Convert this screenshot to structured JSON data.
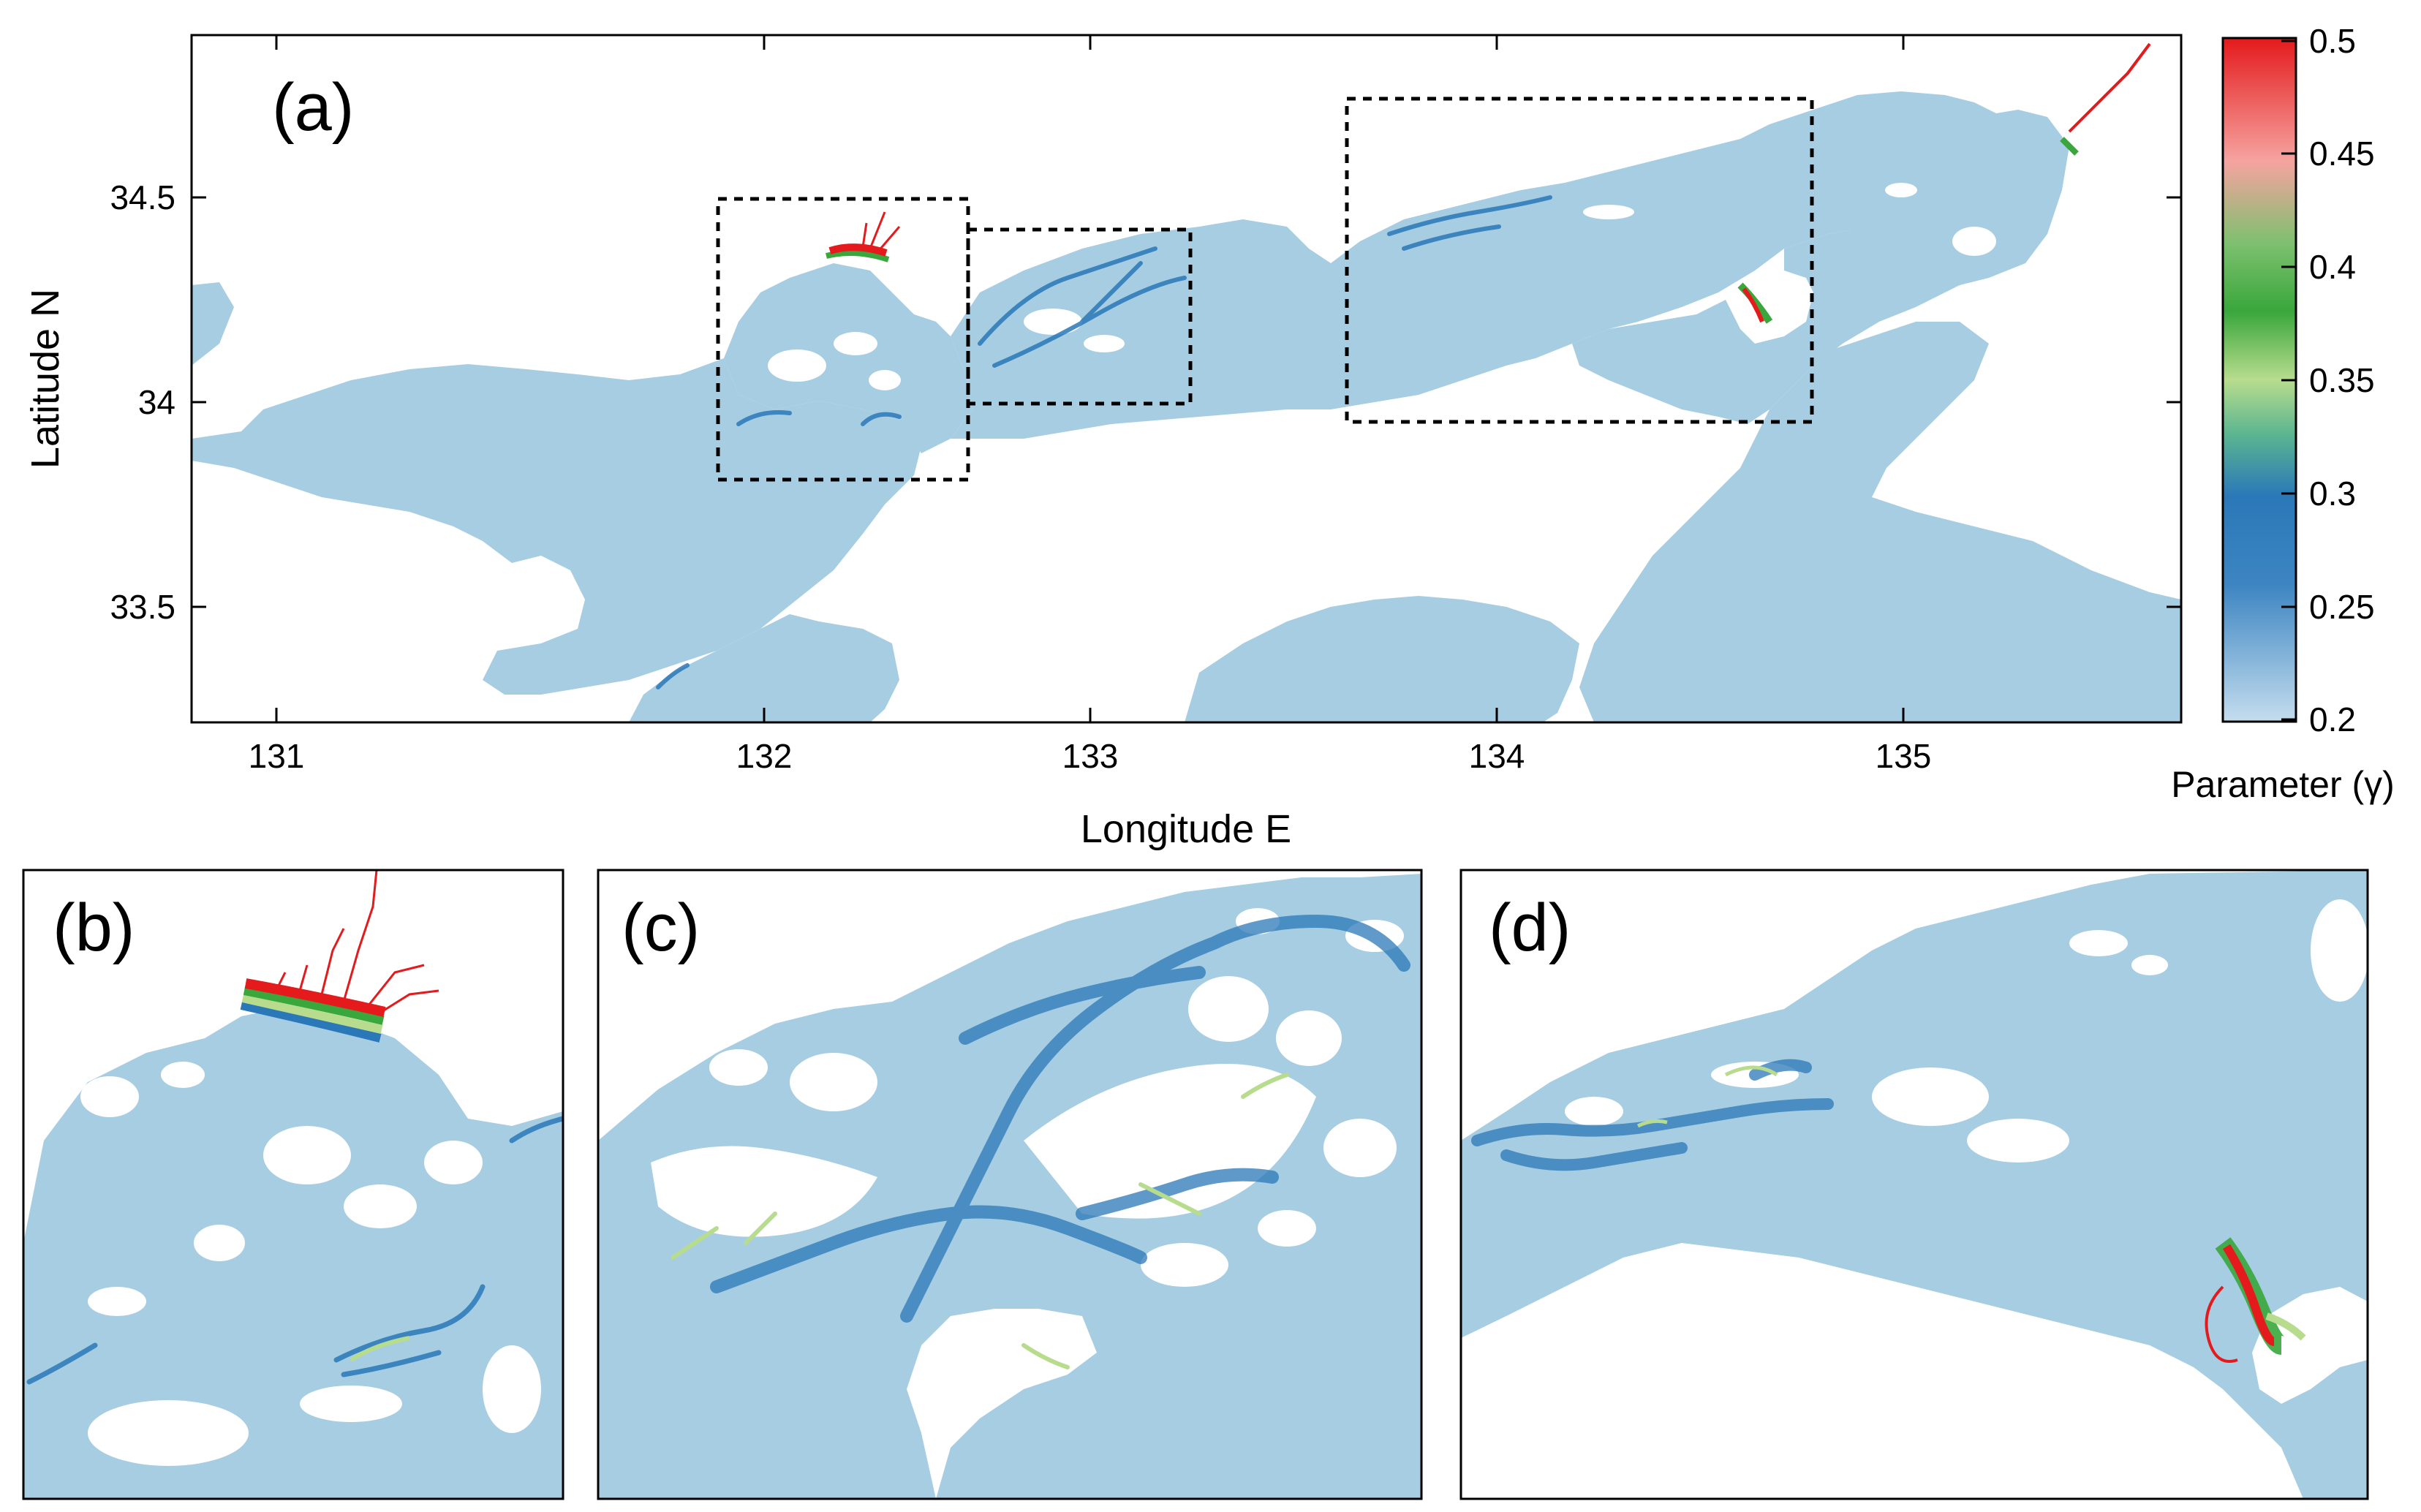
{
  "colors": {
    "water": "#a6cde2",
    "land": "#ffffff",
    "blue_band": "#2a78b8",
    "green_band": "#39a73b",
    "light_green": "#b8dc8e",
    "red_band": "#e41a1c",
    "pink": "#f6a3a0",
    "frame": "#000000"
  },
  "panel_a": {
    "label": "(a)",
    "xlabel": "Longitude E",
    "ylabel": "Latitude N",
    "xticks": [
      "131",
      "132",
      "133",
      "134",
      "135"
    ],
    "yticks": [
      "34.5",
      "34",
      "33.5"
    ]
  },
  "colorbar": {
    "title": "Parameter (γ)",
    "ticks": [
      "0.5",
      "0.45",
      "0.4",
      "0.35",
      "0.3",
      "0.25",
      "0.2"
    ]
  },
  "panel_b": {
    "label": "(b)"
  },
  "panel_c": {
    "label": "(c)"
  },
  "panel_d": {
    "label": "(d)"
  },
  "icons": {
    "zoom_box_b": "dashed-rectangle",
    "zoom_box_c": "dashed-rectangle",
    "zoom_box_d": "dashed-rectangle"
  }
}
